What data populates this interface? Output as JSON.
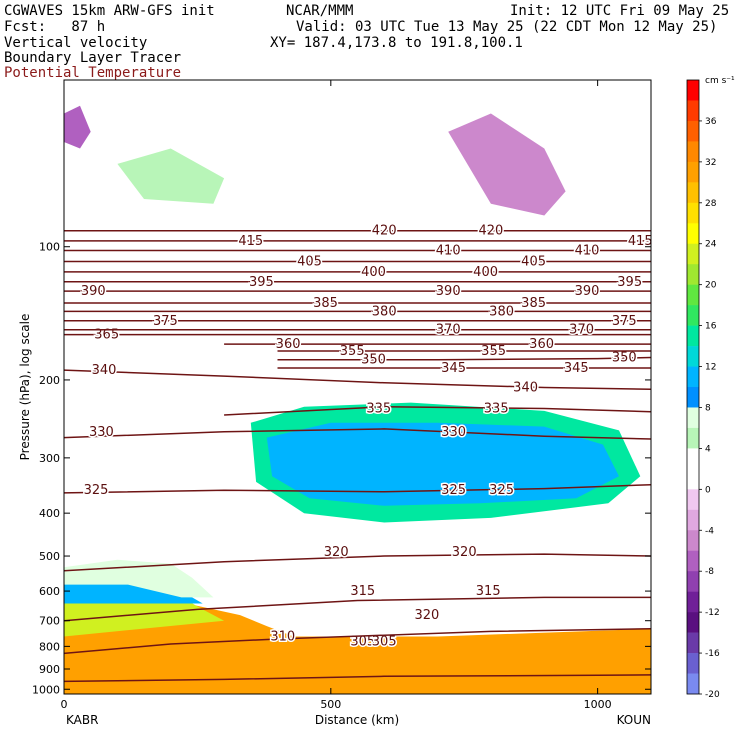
{
  "header": {
    "model": "CGWAVES 15km ARW-GFS init",
    "org": "NCAR/MMM",
    "init": "Init: 12 UTC Fri 09 May 25",
    "fcst": "Fcst:   87 h",
    "valid": "Valid: 03 UTC Tue 13 May 25 (22 CDT Mon 12 May 25)",
    "field1": "Vertical velocity",
    "xy": "XY= 187.4,173.8 to 191.8,100.1",
    "field2": "Boundary Layer Tracer",
    "field3": "Potential Temperature"
  },
  "colors": {
    "theta": "#6e1414",
    "field3_text": "#8b1a1a"
  },
  "chart_data": {
    "type": "heatmap",
    "xlabel": "Distance (km)",
    "ylabel": "Pressure (hPa), log scale",
    "x_ticks": [
      "0",
      "500",
      "1000"
    ],
    "x_tick_values": [
      0,
      500,
      1000
    ],
    "xlim": [
      0,
      1100
    ],
    "y_ticks": [
      "100",
      "200",
      "300",
      "400",
      "500",
      "600",
      "700",
      "800",
      "900",
      "1000"
    ],
    "y_tick_values": [
      100,
      200,
      300,
      400,
      500,
      600,
      700,
      800,
      900,
      1000
    ],
    "y_scale": "log",
    "ylim": [
      1025,
      42
    ],
    "endpoints": {
      "left": "KABR",
      "right": "KOUN"
    },
    "colorbar": {
      "unit": "cm s⁻¹",
      "labels": [
        "36",
        "32",
        "28",
        "24",
        "20",
        "16",
        "12",
        "8",
        "4",
        "0",
        "-4",
        "-8",
        "-12",
        "-16",
        "-20"
      ],
      "label_values": [
        36,
        32,
        28,
        24,
        20,
        16,
        12,
        8,
        4,
        0,
        -4,
        -8,
        -12,
        -16,
        -20
      ],
      "colors": [
        "#ff0000",
        "#ff3b00",
        "#ff6000",
        "#ff8800",
        "#ffa000",
        "#ffc000",
        "#ffe000",
        "#ffff00",
        "#d0f020",
        "#a0e830",
        "#60e840",
        "#30e860",
        "#00e8a0",
        "#00d8d8",
        "#00b4ff",
        "#0090ff",
        "#e0ffe0",
        "#b8f5b8",
        "#ffffff",
        "#ffffff",
        "#f0c8f0",
        "#e0a8e0",
        "#cc88cc",
        "#b060c0",
        "#9040b0",
        "#702098",
        "#5a1080",
        "#6a3aa8",
        "#6a60d0",
        "#7a8af0"
      ],
      "range": [
        -20,
        40
      ]
    },
    "theta_contours": [
      {
        "theta": 305,
        "p": [
          [
            0,
            960
          ],
          [
            300,
            950
          ],
          [
            600,
            935
          ],
          [
            1000,
            930
          ],
          [
            1100,
            928
          ]
        ],
        "labels": [
          [
            560,
            780
          ],
          [
            600,
            780
          ]
        ]
      },
      {
        "theta": 310,
        "p": [
          [
            0,
            830
          ],
          [
            200,
            790
          ],
          [
            400,
            770
          ],
          [
            800,
            740
          ],
          [
            1100,
            730
          ]
        ],
        "labels": [
          [
            410,
            760
          ]
        ]
      },
      {
        "theta": 315,
        "p": [
          [
            0,
            700
          ],
          [
            250,
            660
          ],
          [
            550,
            630
          ],
          [
            900,
            620
          ],
          [
            1100,
            620
          ]
        ],
        "labels": [
          [
            560,
            600
          ],
          [
            795,
            600
          ]
        ]
      },
      {
        "theta": 320,
        "p": [
          [
            0,
            540
          ],
          [
            300,
            515
          ],
          [
            600,
            500
          ],
          [
            900,
            495
          ],
          [
            1100,
            500
          ]
        ],
        "labels": [
          [
            510,
            490
          ],
          [
            750,
            490
          ],
          [
            680,
            680
          ]
        ]
      },
      {
        "theta": 325,
        "p": [
          [
            0,
            360
          ],
          [
            300,
            355
          ],
          [
            600,
            358
          ],
          [
            900,
            352
          ],
          [
            1100,
            345
          ]
        ],
        "labels": [
          [
            60,
            355
          ],
          [
            730,
            355
          ],
          [
            820,
            355
          ]
        ]
      },
      {
        "theta": 330,
        "p": [
          [
            0,
            270
          ],
          [
            300,
            262
          ],
          [
            600,
            258
          ],
          [
            900,
            268
          ],
          [
            1100,
            272
          ]
        ],
        "labels": [
          [
            70,
            262
          ],
          [
            730,
            262
          ]
        ]
      },
      {
        "theta": 335,
        "p": [
          [
            300,
            240
          ],
          [
            600,
            230
          ],
          [
            900,
            232
          ],
          [
            1100,
            236
          ]
        ],
        "labels": [
          [
            590,
            232
          ],
          [
            810,
            232
          ]
        ]
      },
      {
        "theta": 340,
        "p": [
          [
            0,
            190
          ],
          [
            300,
            196
          ],
          [
            600,
            203
          ],
          [
            900,
            208
          ],
          [
            1100,
            210
          ]
        ],
        "labels": [
          [
            75,
            190
          ],
          [
            865,
            208
          ]
        ]
      },
      {
        "theta": 345,
        "p": [
          [
            400,
            188
          ],
          [
            700,
            188
          ],
          [
            1000,
            188
          ],
          [
            1100,
            188
          ]
        ],
        "labels": [
          [
            730,
            188
          ],
          [
            960,
            188
          ]
        ]
      },
      {
        "theta": 350,
        "p": [
          [
            400,
            180
          ],
          [
            700,
            180
          ],
          [
            1000,
            179
          ],
          [
            1100,
            178
          ]
        ],
        "labels": [
          [
            580,
            180
          ],
          [
            1050,
            178
          ]
        ]
      },
      {
        "theta": 355,
        "p": [
          [
            400,
            172
          ],
          [
            700,
            172
          ],
          [
            1000,
            172
          ],
          [
            1100,
            172
          ]
        ],
        "labels": [
          [
            540,
            172
          ],
          [
            805,
            172
          ]
        ]
      },
      {
        "theta": 360,
        "p": [
          [
            300,
            166
          ],
          [
            700,
            166
          ],
          [
            1000,
            166
          ],
          [
            1100,
            166
          ]
        ],
        "labels": [
          [
            420,
            166
          ],
          [
            895,
            166
          ]
        ]
      },
      {
        "theta": 365,
        "p": [
          [
            0,
            158
          ],
          [
            500,
            158
          ],
          [
            1100,
            158
          ]
        ],
        "labels": [
          [
            80,
            158
          ]
        ]
      },
      {
        "theta": 370,
        "p": [
          [
            0,
            154
          ],
          [
            500,
            154
          ],
          [
            1100,
            154
          ]
        ],
        "labels": [
          [
            720,
            154
          ],
          [
            970,
            154
          ]
        ]
      },
      {
        "theta": 375,
        "p": [
          [
            0,
            147
          ],
          [
            500,
            147
          ],
          [
            1100,
            147
          ]
        ],
        "labels": [
          [
            190,
            147
          ],
          [
            1050,
            147
          ]
        ]
      },
      {
        "theta": 380,
        "p": [
          [
            0,
            140
          ],
          [
            500,
            140
          ],
          [
            1100,
            140
          ]
        ],
        "labels": [
          [
            600,
            140
          ],
          [
            820,
            140
          ]
        ]
      },
      {
        "theta": 385,
        "p": [
          [
            0,
            134
          ],
          [
            500,
            134
          ],
          [
            1100,
            134
          ]
        ],
        "labels": [
          [
            490,
            134
          ],
          [
            880,
            134
          ]
        ]
      },
      {
        "theta": 390,
        "p": [
          [
            0,
            126
          ],
          [
            500,
            126
          ],
          [
            1100,
            126
          ]
        ],
        "labels": [
          [
            55,
            126
          ],
          [
            720,
            126
          ],
          [
            980,
            126
          ]
        ]
      },
      {
        "theta": 395,
        "p": [
          [
            0,
            120
          ],
          [
            500,
            120
          ],
          [
            1100,
            120
          ]
        ],
        "labels": [
          [
            370,
            120
          ],
          [
            1060,
            120
          ]
        ]
      },
      {
        "theta": 400,
        "p": [
          [
            0,
            114
          ],
          [
            500,
            114
          ],
          [
            1100,
            114
          ]
        ],
        "labels": [
          [
            580,
            114
          ],
          [
            790,
            114
          ]
        ]
      },
      {
        "theta": 405,
        "p": [
          [
            0,
            108
          ],
          [
            500,
            108
          ],
          [
            1100,
            108
          ]
        ],
        "labels": [
          [
            460,
            108
          ],
          [
            880,
            108
          ]
        ]
      },
      {
        "theta": 410,
        "p": [
          [
            0,
            102
          ],
          [
            500,
            102
          ],
          [
            1100,
            102
          ]
        ],
        "labels": [
          [
            720,
            102
          ],
          [
            980,
            102
          ]
        ]
      },
      {
        "theta": 415,
        "p": [
          [
            0,
            97
          ],
          [
            500,
            97
          ],
          [
            1100,
            97
          ]
        ],
        "labels": [
          [
            350,
            97
          ],
          [
            1080,
            97
          ]
        ]
      },
      {
        "theta": 420,
        "p": [
          [
            0,
            92
          ],
          [
            500,
            92
          ],
          [
            1100,
            92
          ]
        ],
        "labels": [
          [
            600,
            92
          ],
          [
            800,
            92
          ]
        ]
      }
    ],
    "w_regions": [
      {
        "w": 32,
        "poly": [
          [
            0,
            1025
          ],
          [
            0,
            620
          ],
          [
            120,
            600
          ],
          [
            230,
            640
          ],
          [
            330,
            680
          ],
          [
            380,
            720
          ],
          [
            430,
            760
          ],
          [
            700,
            760
          ],
          [
            1100,
            730
          ],
          [
            1100,
            1025
          ]
        ]
      },
      {
        "w": 24,
        "poly": [
          [
            0,
            620
          ],
          [
            130,
            590
          ],
          [
            200,
            600
          ],
          [
            260,
            660
          ],
          [
            300,
            700
          ],
          [
            0,
            760
          ]
        ]
      },
      {
        "w": 12,
        "poly": [
          [
            0,
            560
          ],
          [
            80,
            550
          ],
          [
            160,
            560
          ],
          [
            220,
            600
          ],
          [
            260,
            640
          ],
          [
            160,
            640
          ],
          [
            0,
            640
          ]
        ]
      },
      {
        "w": 8,
        "poly": [
          [
            0,
            530
          ],
          [
            100,
            510
          ],
          [
            200,
            520
          ],
          [
            240,
            560
          ],
          [
            280,
            620
          ],
          [
            220,
            620
          ],
          [
            120,
            580
          ],
          [
            0,
            580
          ]
        ]
      },
      {
        "w": 16,
        "poly": [
          [
            350,
            250
          ],
          [
            450,
            230
          ],
          [
            650,
            225
          ],
          [
            900,
            235
          ],
          [
            1040,
            260
          ],
          [
            1080,
            330
          ],
          [
            1020,
            380
          ],
          [
            800,
            410
          ],
          [
            600,
            420
          ],
          [
            450,
            400
          ],
          [
            360,
            340
          ]
        ]
      },
      {
        "w": 12,
        "poly": [
          [
            380,
            270
          ],
          [
            500,
            250
          ],
          [
            700,
            250
          ],
          [
            900,
            255
          ],
          [
            1010,
            280
          ],
          [
            1040,
            330
          ],
          [
            960,
            370
          ],
          [
            780,
            380
          ],
          [
            600,
            385
          ],
          [
            460,
            370
          ],
          [
            390,
            330
          ]
        ]
      },
      {
        "w": -4,
        "poly": [
          [
            720,
            55
          ],
          [
            800,
            50
          ],
          [
            900,
            60
          ],
          [
            940,
            75
          ],
          [
            900,
            85
          ],
          [
            800,
            80
          ]
        ]
      },
      {
        "w": 6,
        "poly": [
          [
            100,
            65
          ],
          [
            200,
            60
          ],
          [
            300,
            70
          ],
          [
            280,
            80
          ],
          [
            150,
            78
          ]
        ]
      },
      {
        "w": -6,
        "poly": [
          [
            0,
            50
          ],
          [
            30,
            48
          ],
          [
            50,
            55
          ],
          [
            30,
            60
          ],
          [
            0,
            58
          ]
        ]
      }
    ]
  }
}
